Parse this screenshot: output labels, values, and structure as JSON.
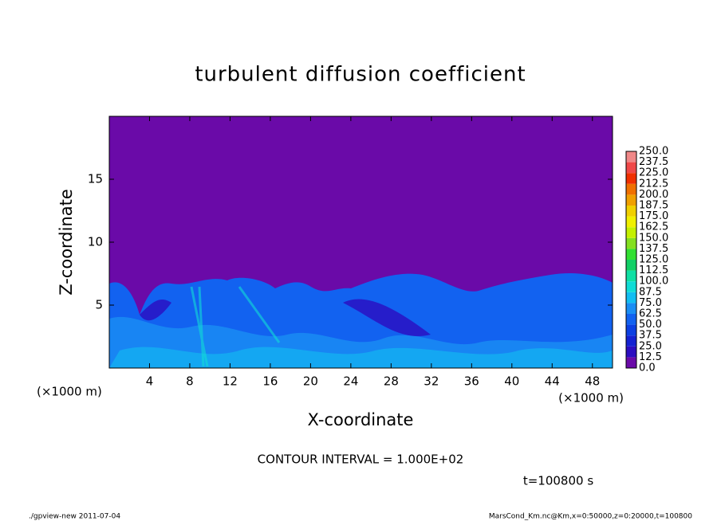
{
  "chart_data": {
    "type": "contour",
    "title": "turbulent diffusion coefficient",
    "xlabel": "X-coordinate",
    "ylabel": "Z-coordinate",
    "x_unit": "(×1000 m)",
    "xlim": [
      0,
      50
    ],
    "xticks": [
      4,
      8,
      12,
      16,
      20,
      24,
      28,
      32,
      36,
      40,
      44,
      48
    ],
    "ylim": [
      0,
      20
    ],
    "yticks": [
      5,
      10,
      15
    ],
    "colorbar": {
      "levels": [
        {
          "value": 0,
          "label": "0.0"
        },
        {
          "value": 12.5,
          "label": "12.5"
        },
        {
          "value": 25,
          "label": "25.0"
        },
        {
          "value": 37.5,
          "label": "37.5"
        },
        {
          "value": 50,
          "label": "50.0"
        },
        {
          "value": 62.5,
          "label": "62.5"
        },
        {
          "value": 75,
          "label": "75.0"
        },
        {
          "value": 87.5,
          "label": "87.5"
        },
        {
          "value": 100,
          "label": "100.0"
        },
        {
          "value": 112.5,
          "label": "112.5"
        },
        {
          "value": 125,
          "label": "125.0"
        },
        {
          "value": 137.5,
          "label": "137.5"
        },
        {
          "value": 150,
          "label": "150.0"
        },
        {
          "value": 162.5,
          "label": "162.5"
        },
        {
          "value": 175,
          "label": "175.0"
        },
        {
          "value": 187.5,
          "label": "187.5"
        },
        {
          "value": 200,
          "label": "200.0"
        },
        {
          "value": 212.5,
          "label": "212.5"
        },
        {
          "value": 225,
          "label": "225.0"
        },
        {
          "value": 237.5,
          "label": "237.5"
        },
        {
          "value": 250,
          "label": "250.0"
        }
      ],
      "colors": [
        "#6a0aa8",
        "#2c0dc0",
        "#1422d2",
        "#0c40e2",
        "#1262f0",
        "#1a8ef4",
        "#12bef2",
        "#10dcd6",
        "#10e0a4",
        "#12d066",
        "#32e032",
        "#84e020",
        "#c4f000",
        "#f0f000",
        "#f0d000",
        "#f0a000",
        "#f07000",
        "#f03000",
        "#f04848",
        "#f08888"
      ]
    },
    "annotation": "CONTOUR INTERVAL = 1.000E+02",
    "time_label": "t=100800 s",
    "footer_left": "./gpview-new  2011-07-04",
    "footer_right": "MarsCond_Km.nc@Km,x=0:50000,z=0:20000,t=100800"
  }
}
